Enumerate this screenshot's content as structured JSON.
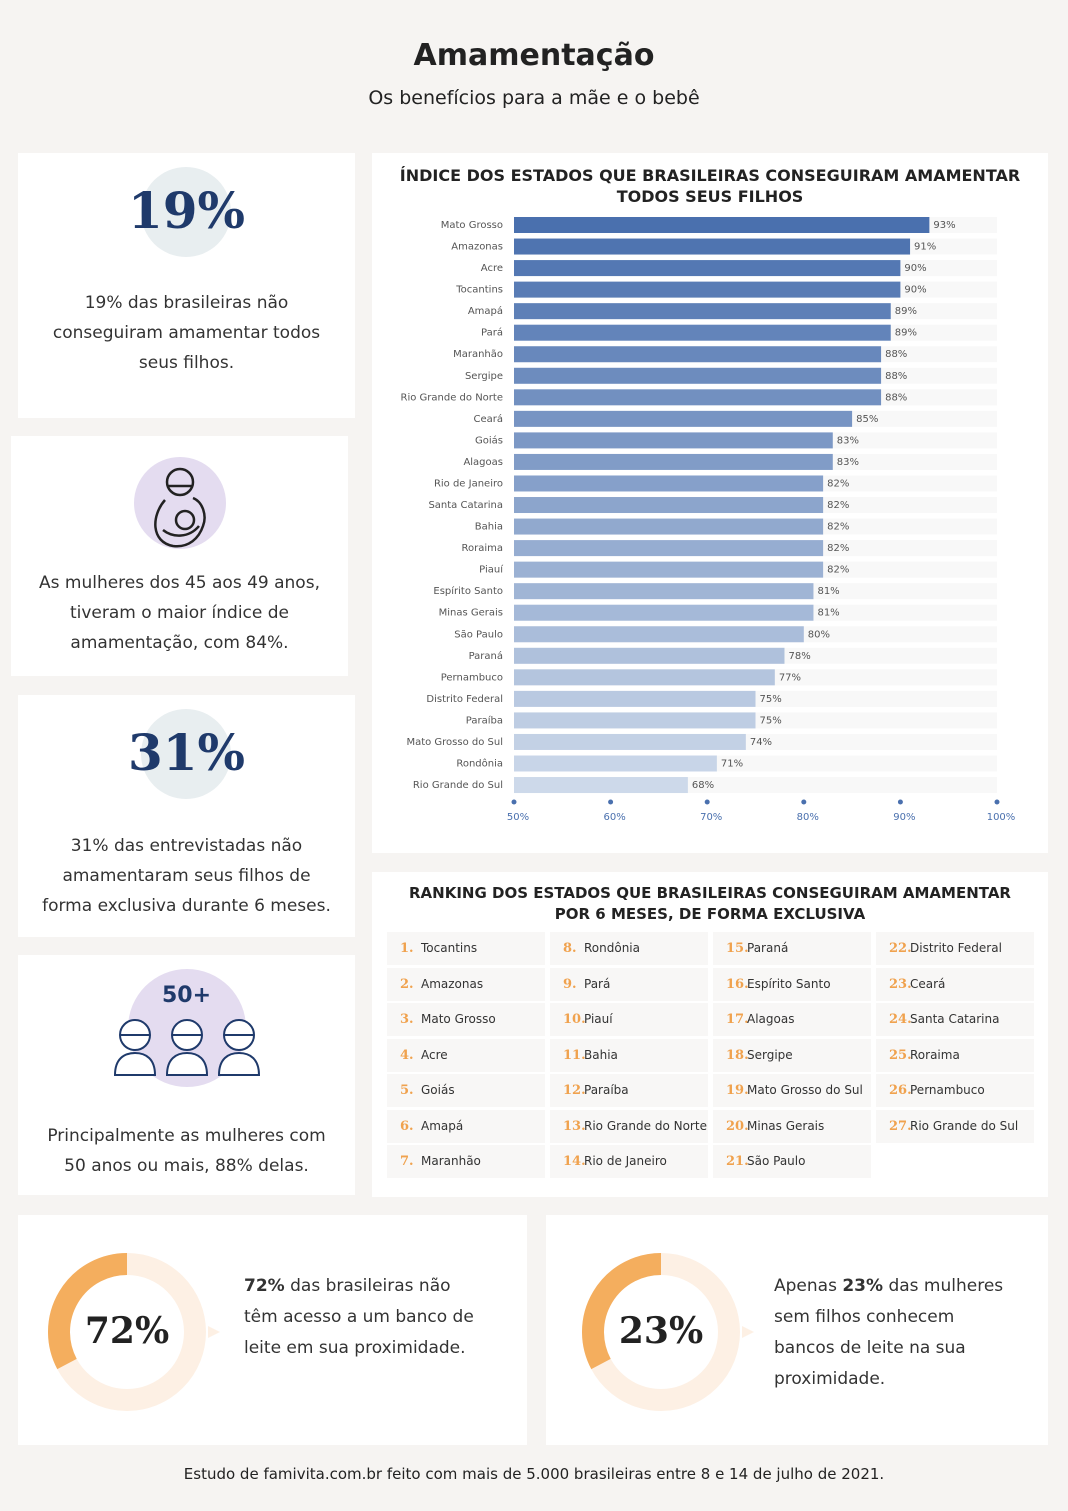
{
  "header": {
    "title": "Amamentação",
    "subtitle": "Os benefícios para a mãe e o bebê"
  },
  "cards": [
    {
      "stat": "19%",
      "text": "19% das brasileiras não conseguiram amamentar todos seus filhos."
    },
    {
      "text": "As mulheres dos 45 aos 49 anos, tiveram o maior índice de amamentação, com 84%."
    },
    {
      "stat": "31%",
      "text": "31% das entrevistadas não amamentaram seus filhos de forma exclusiva durante 6 meses."
    },
    {
      "badge": "50+",
      "text": "Principalmente as mulheres com 50 anos ou mais, 88% delas."
    }
  ],
  "chart_data": {
    "type": "bar",
    "orientation": "horizontal",
    "title": "ÍNDICE DOS ESTADOS QUE BRASILEIRAS CONSEGUIRAM AMAMENTAR TODOS SEUS FILHOS",
    "categories": [
      "Mato Grosso",
      "Amazonas",
      "Acre",
      "Tocantins",
      "Amapá",
      "Pará",
      "Maranhão",
      "Sergipe",
      "Rio Grande do Norte",
      "Ceará",
      "Goiás",
      "Alagoas",
      "Rio de Janeiro",
      "Santa Catarina",
      "Bahia",
      "Roraima",
      "Piauí",
      "Espírito Santo",
      "Minas Gerais",
      "São Paulo",
      "Paraná",
      "Pernambuco",
      "Distrito Federal",
      "Paraíba",
      "Mato Grosso do Sul",
      "Rondônia",
      "Rio Grande do Sul"
    ],
    "values": [
      93,
      91,
      90,
      90,
      89,
      89,
      88,
      88,
      88,
      85,
      83,
      83,
      82,
      82,
      82,
      82,
      82,
      81,
      81,
      80,
      78,
      77,
      75,
      75,
      74,
      71,
      68
    ],
    "value_labels": [
      "93%",
      "91%",
      "90%",
      "90%",
      "89%",
      "89%",
      "88%",
      "88%",
      "88%",
      "85%",
      "83%",
      "83%",
      "82%",
      "82%",
      "82%",
      "82%",
      "82%",
      "81%",
      "81%",
      "80%",
      "78%",
      "77%",
      "75%",
      "75%",
      "74%",
      "71%",
      "68%"
    ],
    "color_range": [
      "#4a70ae",
      "#cdd9ea"
    ],
    "xlim": [
      50,
      100
    ],
    "xticks": [
      {
        "value": 50,
        "label": "50%"
      },
      {
        "value": 60,
        "label": "60%"
      },
      {
        "value": 70,
        "label": "70%"
      },
      {
        "value": 80,
        "label": "80%"
      },
      {
        "value": 90,
        "label": "90%"
      },
      {
        "value": 100,
        "label": "100%"
      }
    ]
  },
  "ranking": {
    "title": "RANKING DOS ESTADOS QUE BRASILEIRAS CONSEGUIRAM AMAMENTAR POR 6 MESES, DE FORMA EXCLUSIVA",
    "items": [
      {
        "rank": "1.",
        "name": "Tocantins"
      },
      {
        "rank": "2.",
        "name": "Amazonas"
      },
      {
        "rank": "3.",
        "name": "Mato Grosso"
      },
      {
        "rank": "4.",
        "name": "Acre"
      },
      {
        "rank": "5.",
        "name": "Goiás"
      },
      {
        "rank": "6.",
        "name": "Amapá"
      },
      {
        "rank": "7.",
        "name": "Maranhão"
      },
      {
        "rank": "8.",
        "name": "Rondônia"
      },
      {
        "rank": "9.",
        "name": "Pará"
      },
      {
        "rank": "10.",
        "name": "Piauí"
      },
      {
        "rank": "11.",
        "name": "Bahia"
      },
      {
        "rank": "12.",
        "name": "Paraíba"
      },
      {
        "rank": "13.",
        "name": "Rio Grande do Norte"
      },
      {
        "rank": "14.",
        "name": "Rio de Janeiro"
      },
      {
        "rank": "15.",
        "name": "Paraná"
      },
      {
        "rank": "16.",
        "name": "Espírito Santo"
      },
      {
        "rank": "17.",
        "name": "Alagoas"
      },
      {
        "rank": "18.",
        "name": "Sergipe"
      },
      {
        "rank": "19.",
        "name": "Mato Grosso do Sul"
      },
      {
        "rank": "20.",
        "name": "Minas Gerais"
      },
      {
        "rank": "21.",
        "name": "São Paulo"
      },
      {
        "rank": "22.",
        "name": "Distrito Federal"
      },
      {
        "rank": "23.",
        "name": "Ceará"
      },
      {
        "rank": "24.",
        "name": "Santa Catarina"
      },
      {
        "rank": "25.",
        "name": "Roraima"
      },
      {
        "rank": "26.",
        "name": "Pernambuco"
      },
      {
        "rank": "27.",
        "name": "Rio Grande do Sul"
      }
    ]
  },
  "milk_banks": [
    {
      "stat": "72%",
      "text": [
        {
          "bold": "72%"
        },
        {
          "plain": " das brasileiras não têm acesso a um banco de leite em sua proximidade."
        }
      ]
    },
    {
      "stat": "23%",
      "text": [
        {
          "plain": "Apenas "
        },
        {
          "bold": "23%"
        },
        {
          "plain": " das mulheres sem filhos conhecem bancos de leite na sua proximidade."
        }
      ]
    }
  ],
  "footer": "Estudo de famivita.com.br feito com mais de 5.000 brasileiras entre 8 e 14 de julho de 2021."
}
